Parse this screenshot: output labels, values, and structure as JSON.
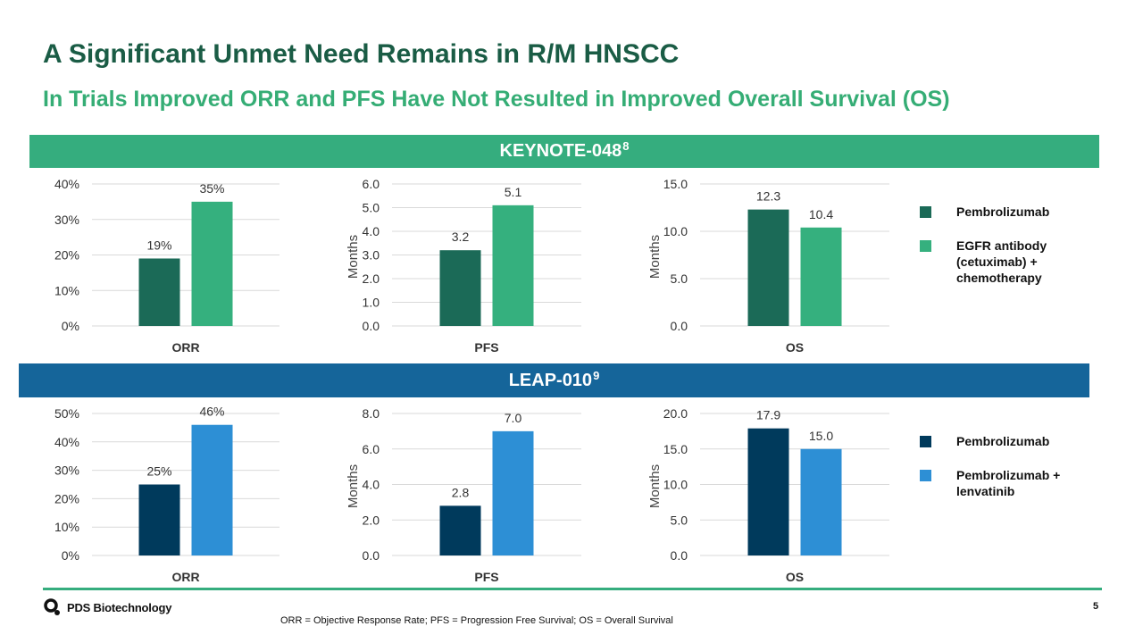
{
  "slide": {
    "title": "A Significant Unmet Need Remains in R/M HNSCC",
    "subtitle": "In Trials Improved ORR and PFS Have Not Resulted in Improved Overall Survival (OS)",
    "page_number": "5",
    "footnote": "ORR = Objective Response Rate; PFS = Progression Free Survival; OS = Overall Survival",
    "logo_text": "PDS Biotechnology"
  },
  "sections": {
    "top": {
      "label": "KEYNOTE-048",
      "superscript": "8"
    },
    "bottom": {
      "label": "LEAP-010",
      "superscript": "9"
    }
  },
  "legend_top": [
    "Pembrolizumab",
    "EGFR antibody (cetuximab) + chemotherapy"
  ],
  "legend_bottom": [
    "Pembrolizumab",
    "Pembrolizumab + lenvatinib"
  ],
  "colors": {
    "title": "#1a5c45",
    "subtitle": "#35ad75",
    "band_top": "#35ad7e",
    "band_bottom": "#15659a",
    "pembro_top": "#1b6a57",
    "egfr_chemo": "#35b07e",
    "pembro_bottom": "#003a5c",
    "pembro_lenva": "#2d8fd5",
    "grid": "#d9d9d9"
  },
  "chart_data": [
    {
      "id": "kn-orr",
      "type": "bar",
      "categories": [
        "ORR"
      ],
      "ylabel": "",
      "ylim": [
        0,
        40
      ],
      "yticks": [
        "0%",
        "10%",
        "20%",
        "30%",
        "40%"
      ],
      "series": [
        {
          "name": "Pembrolizumab",
          "values": [
            19
          ],
          "label": "19%",
          "color": "#1b6a57"
        },
        {
          "name": "EGFR antibody (cetuximab) + chemotherapy",
          "values": [
            35
          ],
          "label": "35%",
          "color": "#35b07e"
        }
      ]
    },
    {
      "id": "kn-pfs",
      "type": "bar",
      "categories": [
        "PFS"
      ],
      "ylabel": "Months",
      "ylim": [
        0,
        6
      ],
      "yticks": [
        "0.0",
        "1.0",
        "2.0",
        "3.0",
        "4.0",
        "5.0",
        "6.0"
      ],
      "series": [
        {
          "name": "Pembrolizumab",
          "values": [
            3.2
          ],
          "label": "3.2",
          "color": "#1b6a57"
        },
        {
          "name": "EGFR antibody (cetuximab) + chemotherapy",
          "values": [
            5.1
          ],
          "label": "5.1",
          "color": "#35b07e"
        }
      ]
    },
    {
      "id": "kn-os",
      "type": "bar",
      "categories": [
        "OS"
      ],
      "ylabel": "Months",
      "ylim": [
        0,
        15
      ],
      "yticks": [
        "0.0",
        "5.0",
        "10.0",
        "15.0"
      ],
      "series": [
        {
          "name": "Pembrolizumab",
          "values": [
            12.3
          ],
          "label": "12.3",
          "color": "#1b6a57"
        },
        {
          "name": "EGFR antibody (cetuximab) + chemotherapy",
          "values": [
            10.4
          ],
          "label": "10.4",
          "color": "#35b07e"
        }
      ]
    },
    {
      "id": "leap-orr",
      "type": "bar",
      "categories": [
        "ORR"
      ],
      "ylabel": "",
      "ylim": [
        0,
        50
      ],
      "yticks": [
        "0%",
        "10%",
        "20%",
        "30%",
        "40%",
        "50%"
      ],
      "series": [
        {
          "name": "Pembrolizumab",
          "values": [
            25
          ],
          "label": "25%",
          "color": "#003a5c"
        },
        {
          "name": "Pembrolizumab + lenvatinib",
          "values": [
            46
          ],
          "label": "46%",
          "color": "#2d8fd5"
        }
      ]
    },
    {
      "id": "leap-pfs",
      "type": "bar",
      "categories": [
        "PFS"
      ],
      "ylabel": "Months",
      "ylim": [
        0,
        8
      ],
      "yticks": [
        "0.0",
        "2.0",
        "4.0",
        "6.0",
        "8.0"
      ],
      "series": [
        {
          "name": "Pembrolizumab",
          "values": [
            2.8
          ],
          "label": "2.8",
          "color": "#003a5c"
        },
        {
          "name": "Pembrolizumab + lenvatinib",
          "values": [
            7.0
          ],
          "label": "7.0",
          "color": "#2d8fd5"
        }
      ]
    },
    {
      "id": "leap-os",
      "type": "bar",
      "categories": [
        "OS"
      ],
      "ylabel": "Months",
      "ylim": [
        0,
        20
      ],
      "yticks": [
        "0.0",
        "5.0",
        "10.0",
        "15.0",
        "20.0"
      ],
      "series": [
        {
          "name": "Pembrolizumab",
          "values": [
            17.9
          ],
          "label": "17.9",
          "color": "#003a5c"
        },
        {
          "name": "Pembrolizumab + lenvatinib",
          "values": [
            15.0
          ],
          "label": "15.0",
          "color": "#2d8fd5"
        }
      ]
    }
  ]
}
